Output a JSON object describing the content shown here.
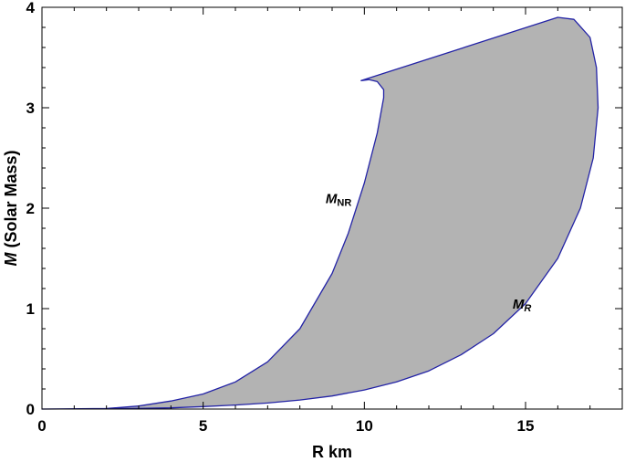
{
  "chart_data": {
    "type": "area",
    "title": "",
    "xlabel": "R  km",
    "ylabel_main": "M",
    "ylabel_rest": " (Solar  Mass)",
    "xlim": [
      0,
      18
    ],
    "ylim": [
      0,
      4
    ],
    "xticks": [
      0,
      5,
      10,
      15
    ],
    "yticks": [
      0,
      1,
      2,
      3,
      4
    ],
    "grid": false,
    "fill_color": "#b3b3b3",
    "line_color": "#2323a6",
    "region": [
      [
        0.0,
        0.0
      ],
      [
        2.0,
        0.005
      ],
      [
        3.0,
        0.03
      ],
      [
        4.0,
        0.08
      ],
      [
        5.0,
        0.15
      ],
      [
        6.0,
        0.27
      ],
      [
        7.0,
        0.47
      ],
      [
        8.0,
        0.8
      ],
      [
        9.0,
        1.35
      ],
      [
        9.5,
        1.75
      ],
      [
        10.0,
        2.25
      ],
      [
        10.4,
        2.75
      ],
      [
        10.6,
        3.1
      ],
      [
        10.6,
        3.18
      ],
      [
        10.4,
        3.26
      ],
      [
        10.15,
        3.28
      ],
      [
        9.9,
        3.27
      ],
      [
        16.0,
        3.9
      ],
      [
        16.5,
        3.88
      ],
      [
        17.0,
        3.7
      ],
      [
        17.2,
        3.4
      ],
      [
        17.25,
        3.0
      ],
      [
        17.1,
        2.5
      ],
      [
        16.7,
        2.0
      ],
      [
        16.0,
        1.5
      ],
      [
        15.0,
        1.05
      ],
      [
        14.0,
        0.75
      ],
      [
        13.0,
        0.54
      ],
      [
        12.0,
        0.38
      ],
      [
        11.0,
        0.27
      ],
      [
        10.0,
        0.19
      ],
      [
        9.0,
        0.13
      ],
      [
        8.0,
        0.09
      ],
      [
        7.0,
        0.06
      ],
      [
        6.0,
        0.04
      ],
      [
        5.0,
        0.025
      ],
      [
        4.0,
        0.012
      ],
      [
        3.0,
        0.006
      ],
      [
        0.0,
        0.0
      ]
    ],
    "annotations": [
      {
        "main": "M",
        "sub": "NR",
        "sub_italic": false,
        "x": 8.8,
        "y": 2.05
      },
      {
        "main": "M",
        "sub": "R",
        "sub_italic": true,
        "x": 14.6,
        "y": 1.0
      }
    ]
  }
}
